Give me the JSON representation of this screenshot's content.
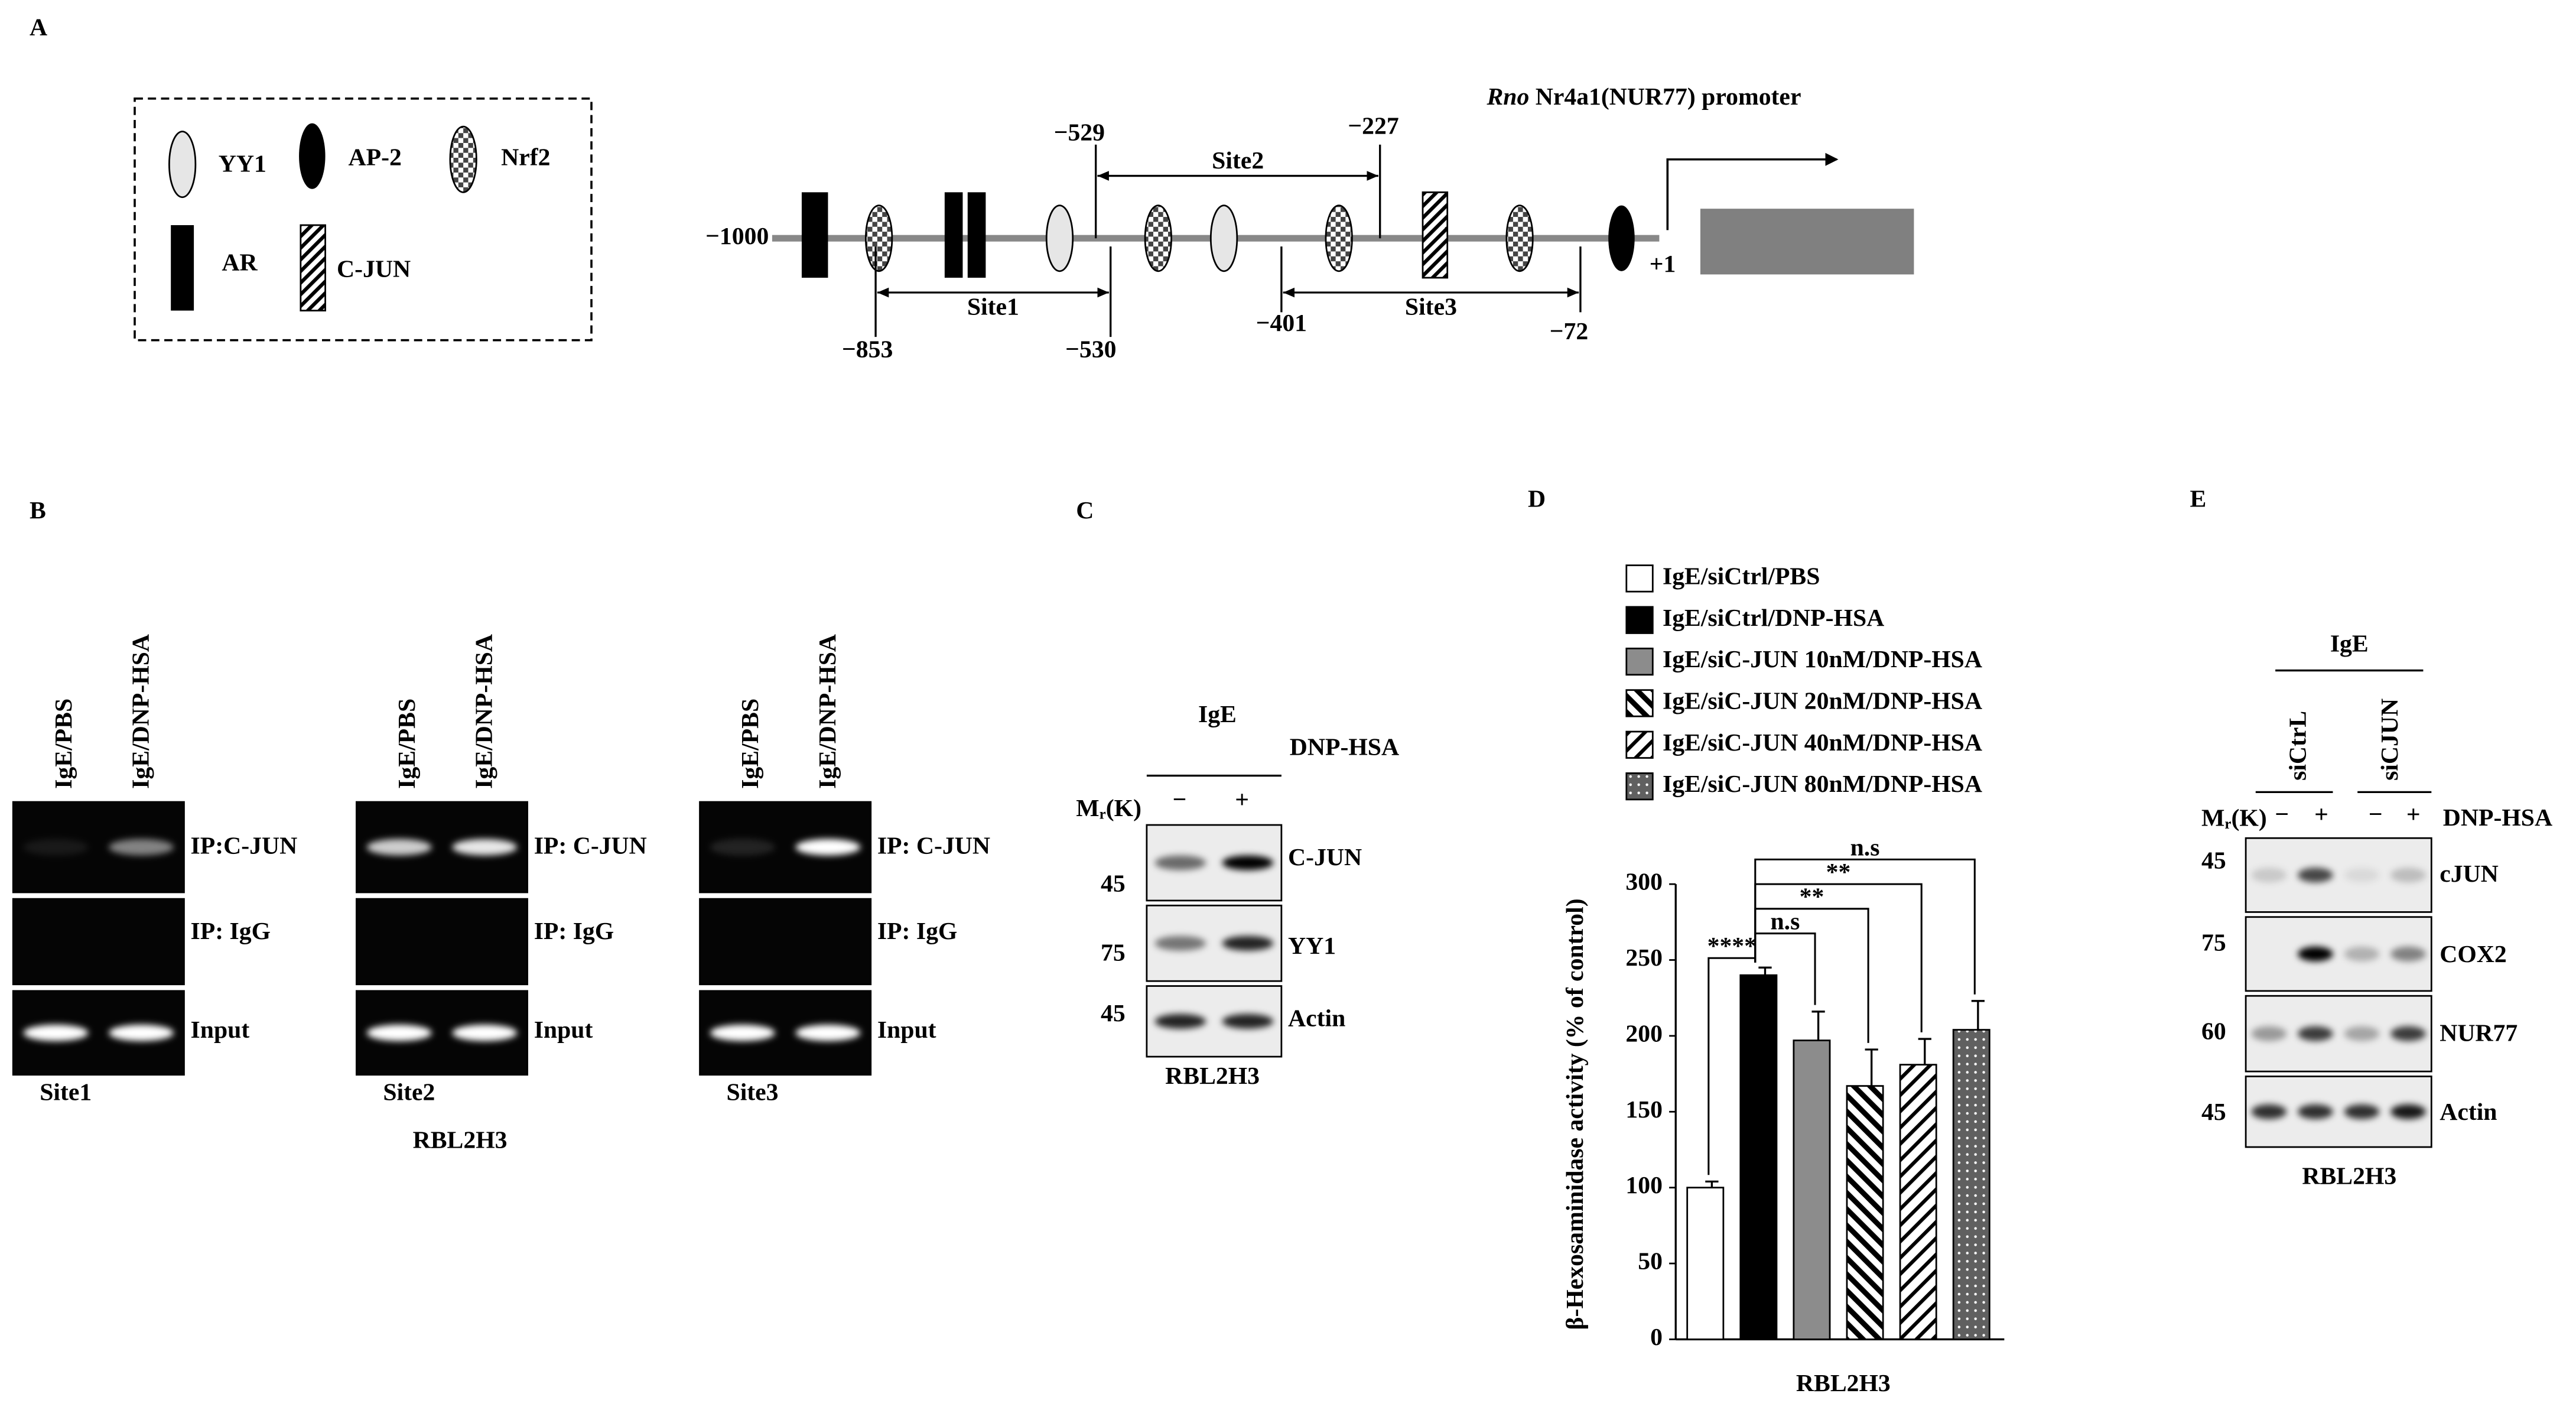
{
  "panels": {
    "A": {
      "label": "A",
      "title": {
        "italic": "Rno",
        "text": " Nr4a1(NUR77) promoter"
      },
      "legend": [
        "YY1",
        "AP-2",
        "Nrf2",
        "AR",
        "C-JUN"
      ],
      "start": "−1000",
      "tss": "+1",
      "sites": [
        {
          "name": "Site1",
          "from": "−853",
          "to": "−530"
        },
        {
          "name": "Site2",
          "from": "−529",
          "to": "−227"
        },
        {
          "name": "Site3",
          "from": "−401",
          "to": "−72"
        }
      ]
    },
    "B": {
      "label": "B",
      "lanes": [
        "IgE/PBS",
        "IgE/DNP-HSA"
      ],
      "blots": [
        {
          "name": "Site1",
          "rows": [
            "IP:C-JUN",
            "IP: IgG",
            "Input"
          ]
        },
        {
          "name": "Site2",
          "rows": [
            "IP: C-JUN",
            "IP: IgG",
            "Input"
          ]
        },
        {
          "name": "Site3",
          "rows": [
            "IP: C-JUN",
            "IP: IgG",
            "Input"
          ]
        }
      ],
      "cell": "RBL2H3"
    },
    "C": {
      "label": "C",
      "treatment": "IgE",
      "stimulus": "DNP-HSA",
      "mr": [
        "M",
        "r",
        "(K)"
      ],
      "lanes": [
        "−",
        "+"
      ],
      "blots": [
        {
          "name": "C-JUN",
          "mw": 45
        },
        {
          "name": "YY1",
          "mw": 75
        },
        {
          "name": "Actin",
          "mw": 45
        }
      ],
      "cell": "RBL2H3"
    },
    "D": {
      "label": "D",
      "chart": {
        "type": "bar",
        "ylabel": "β-Hexosaminidase activity (% of control)",
        "xlabel": "RBL2H3",
        "ylim": [
          0,
          300
        ],
        "yticks": [
          0,
          50,
          100,
          150,
          200,
          250,
          300
        ],
        "series": [
          {
            "name": "IgE/siCtrl/PBS",
            "color": "#ffffff",
            "pattern": "solid",
            "values": [
              100
            ],
            "errors": [
              4
            ],
            "significance": "****"
          },
          {
            "name": "IgE/siCtrl/DNP-HSA",
            "color": "#000000",
            "pattern": "solid",
            "values": [
              240
            ],
            "errors": [
              5
            ]
          },
          {
            "name": "IgE/siC-JUN 10nM/DNP-HSA",
            "color": "#8c8c8c",
            "pattern": "solid",
            "values": [
              197
            ],
            "errors": [
              19
            ],
            "significance": "n.s"
          },
          {
            "name": "IgE/siC-JUN 20nM/DNP-HSA",
            "color": "#000000",
            "pattern": "hatch-back",
            "values": [
              167
            ],
            "errors": [
              24
            ],
            "significance": "**"
          },
          {
            "name": "IgE/siC-JUN 40nM/DNP-HSA",
            "color": "#000000",
            "pattern": "hatch-forward",
            "values": [
              181
            ],
            "errors": [
              17
            ],
            "significance": "**"
          },
          {
            "name": "IgE/siC-JUN 80nM/DNP-HSA",
            "color": "#606060",
            "pattern": "dots",
            "values": [
              204
            ],
            "errors": [
              19
            ],
            "significance": "n.s"
          }
        ]
      }
    },
    "E": {
      "label": "E",
      "treatment": "IgE",
      "groups": [
        "siCtrL",
        "siCJUN"
      ],
      "stimulus": "DNP-HSA",
      "mr": [
        "M",
        "r",
        "(K)"
      ],
      "lanes": [
        "−",
        "+",
        "−",
        "+"
      ],
      "blots": [
        {
          "name": "cJUN",
          "mw": 45
        },
        {
          "name": "COX2",
          "mw": 75
        },
        {
          "name": "NUR77",
          "mw": 60
        },
        {
          "name": "Actin",
          "mw": 45
        }
      ],
      "cell": "RBL2H3"
    }
  }
}
